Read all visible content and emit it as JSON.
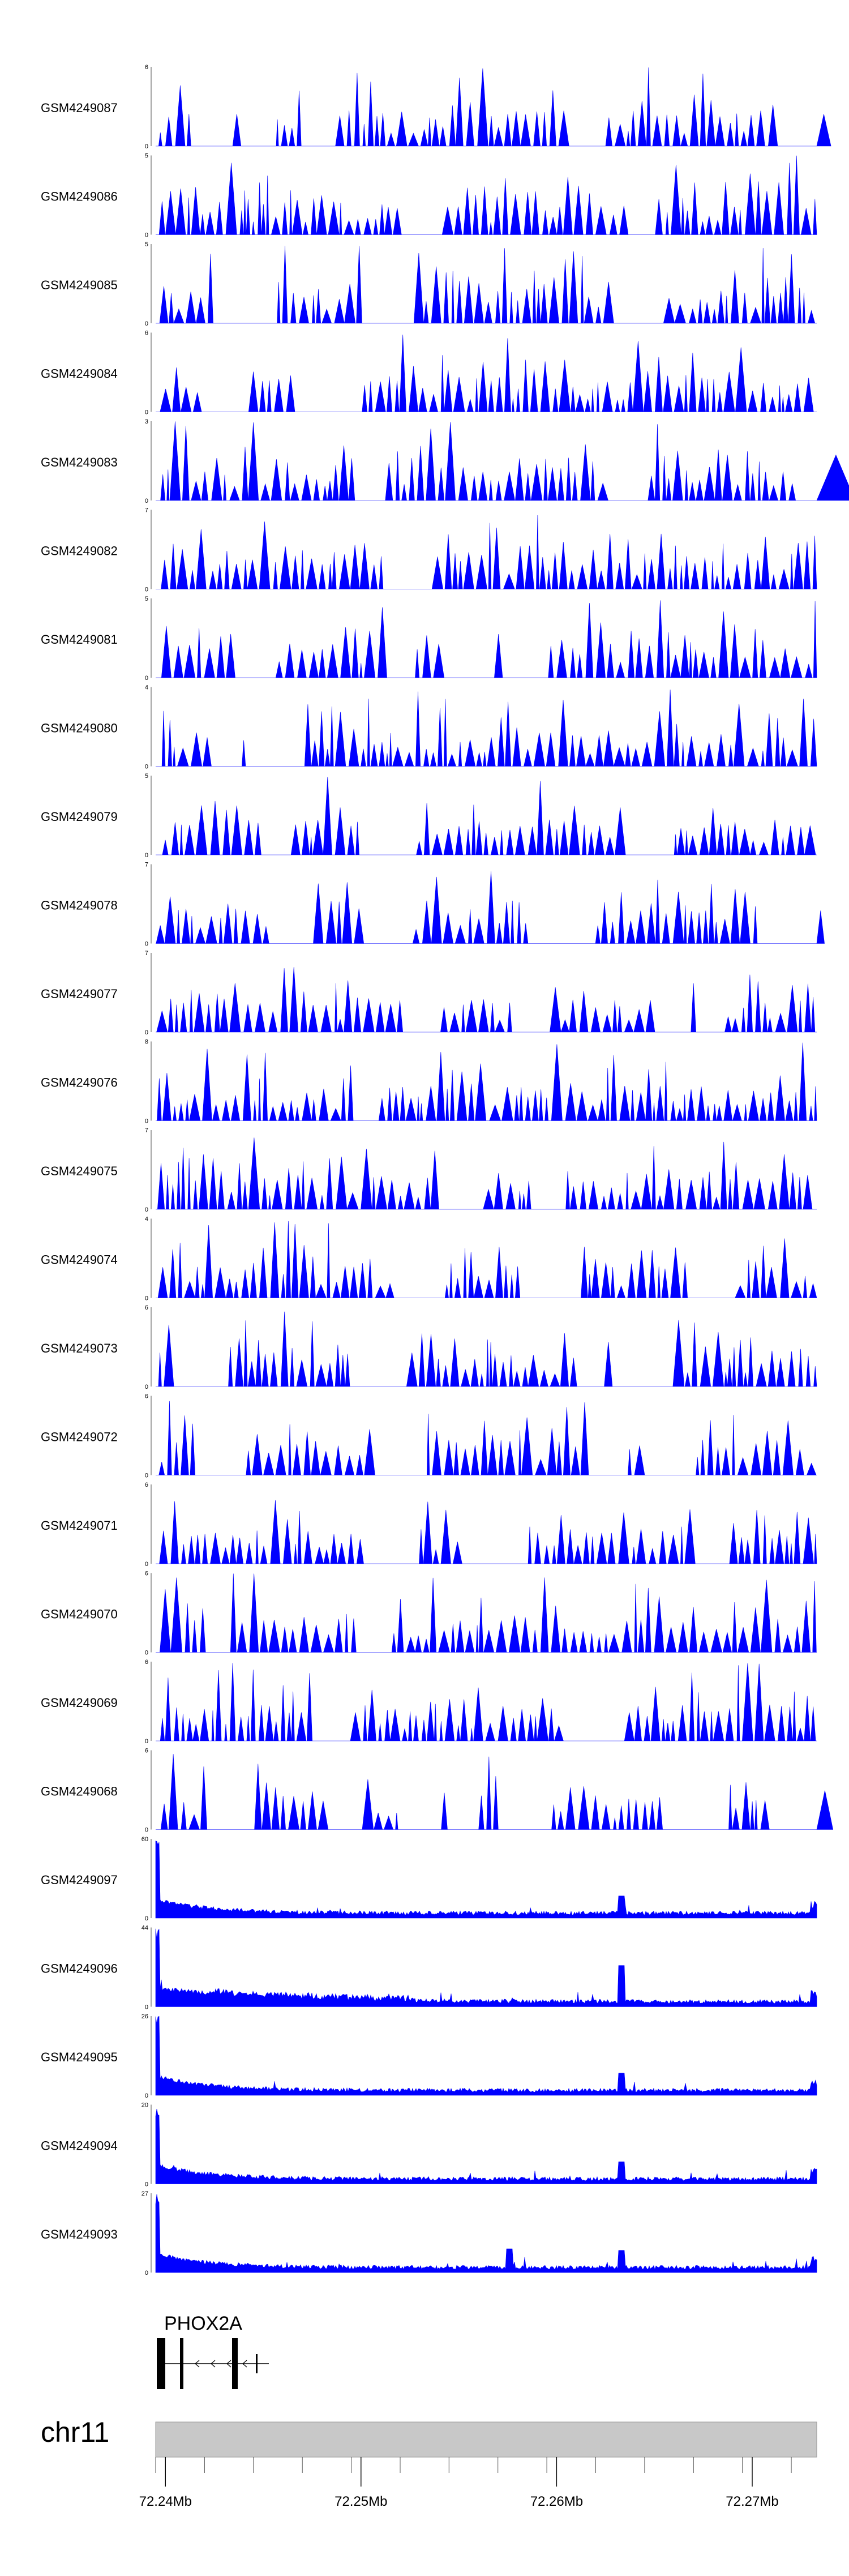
{
  "chart_data": {
    "type": "area",
    "title": "",
    "region": {
      "chromosome": "chr11",
      "start": 72.2395,
      "end": 72.2733,
      "unit": "Mb"
    },
    "series_color": "#0000ff",
    "tracks": [
      {
        "name": "GSM4249087",
        "ymax": 6
      },
      {
        "name": "GSM4249086",
        "ymax": 5
      },
      {
        "name": "GSM4249085",
        "ymax": 5
      },
      {
        "name": "GSM4249084",
        "ymax": 6
      },
      {
        "name": "GSM4249083",
        "ymax": 3
      },
      {
        "name": "GSM4249082",
        "ymax": 7
      },
      {
        "name": "GSM4249081",
        "ymax": 5
      },
      {
        "name": "GSM4249080",
        "ymax": 4
      },
      {
        "name": "GSM4249079",
        "ymax": 5
      },
      {
        "name": "GSM4249078",
        "ymax": 7
      },
      {
        "name": "GSM4249077",
        "ymax": 7
      },
      {
        "name": "GSM4249076",
        "ymax": 8
      },
      {
        "name": "GSM4249075",
        "ymax": 7
      },
      {
        "name": "GSM4249074",
        "ymax": 4
      },
      {
        "name": "GSM4249073",
        "ymax": 6
      },
      {
        "name": "GSM4249072",
        "ymax": 6
      },
      {
        "name": "GSM4249071",
        "ymax": 6
      },
      {
        "name": "GSM4249070",
        "ymax": 6
      },
      {
        "name": "GSM4249069",
        "ymax": 6
      },
      {
        "name": "GSM4249068",
        "ymax": 6
      },
      {
        "name": "GSM4249097",
        "ymax": 60
      },
      {
        "name": "GSM4249096",
        "ymax": 44
      },
      {
        "name": "GSM4249095",
        "ymax": 26
      },
      {
        "name": "GSM4249094",
        "ymax": 20
      },
      {
        "name": "GSM4249093",
        "ymax": 27
      }
    ],
    "y_baseline_label": "0",
    "gene": {
      "name": "PHOX2A",
      "strand": "-"
    },
    "x_ticks": [
      "72.24Mb",
      "72.25Mb",
      "72.26Mb",
      "72.27Mb"
    ],
    "x_tick_values": [
      72.24,
      72.25,
      72.26,
      72.27
    ]
  }
}
